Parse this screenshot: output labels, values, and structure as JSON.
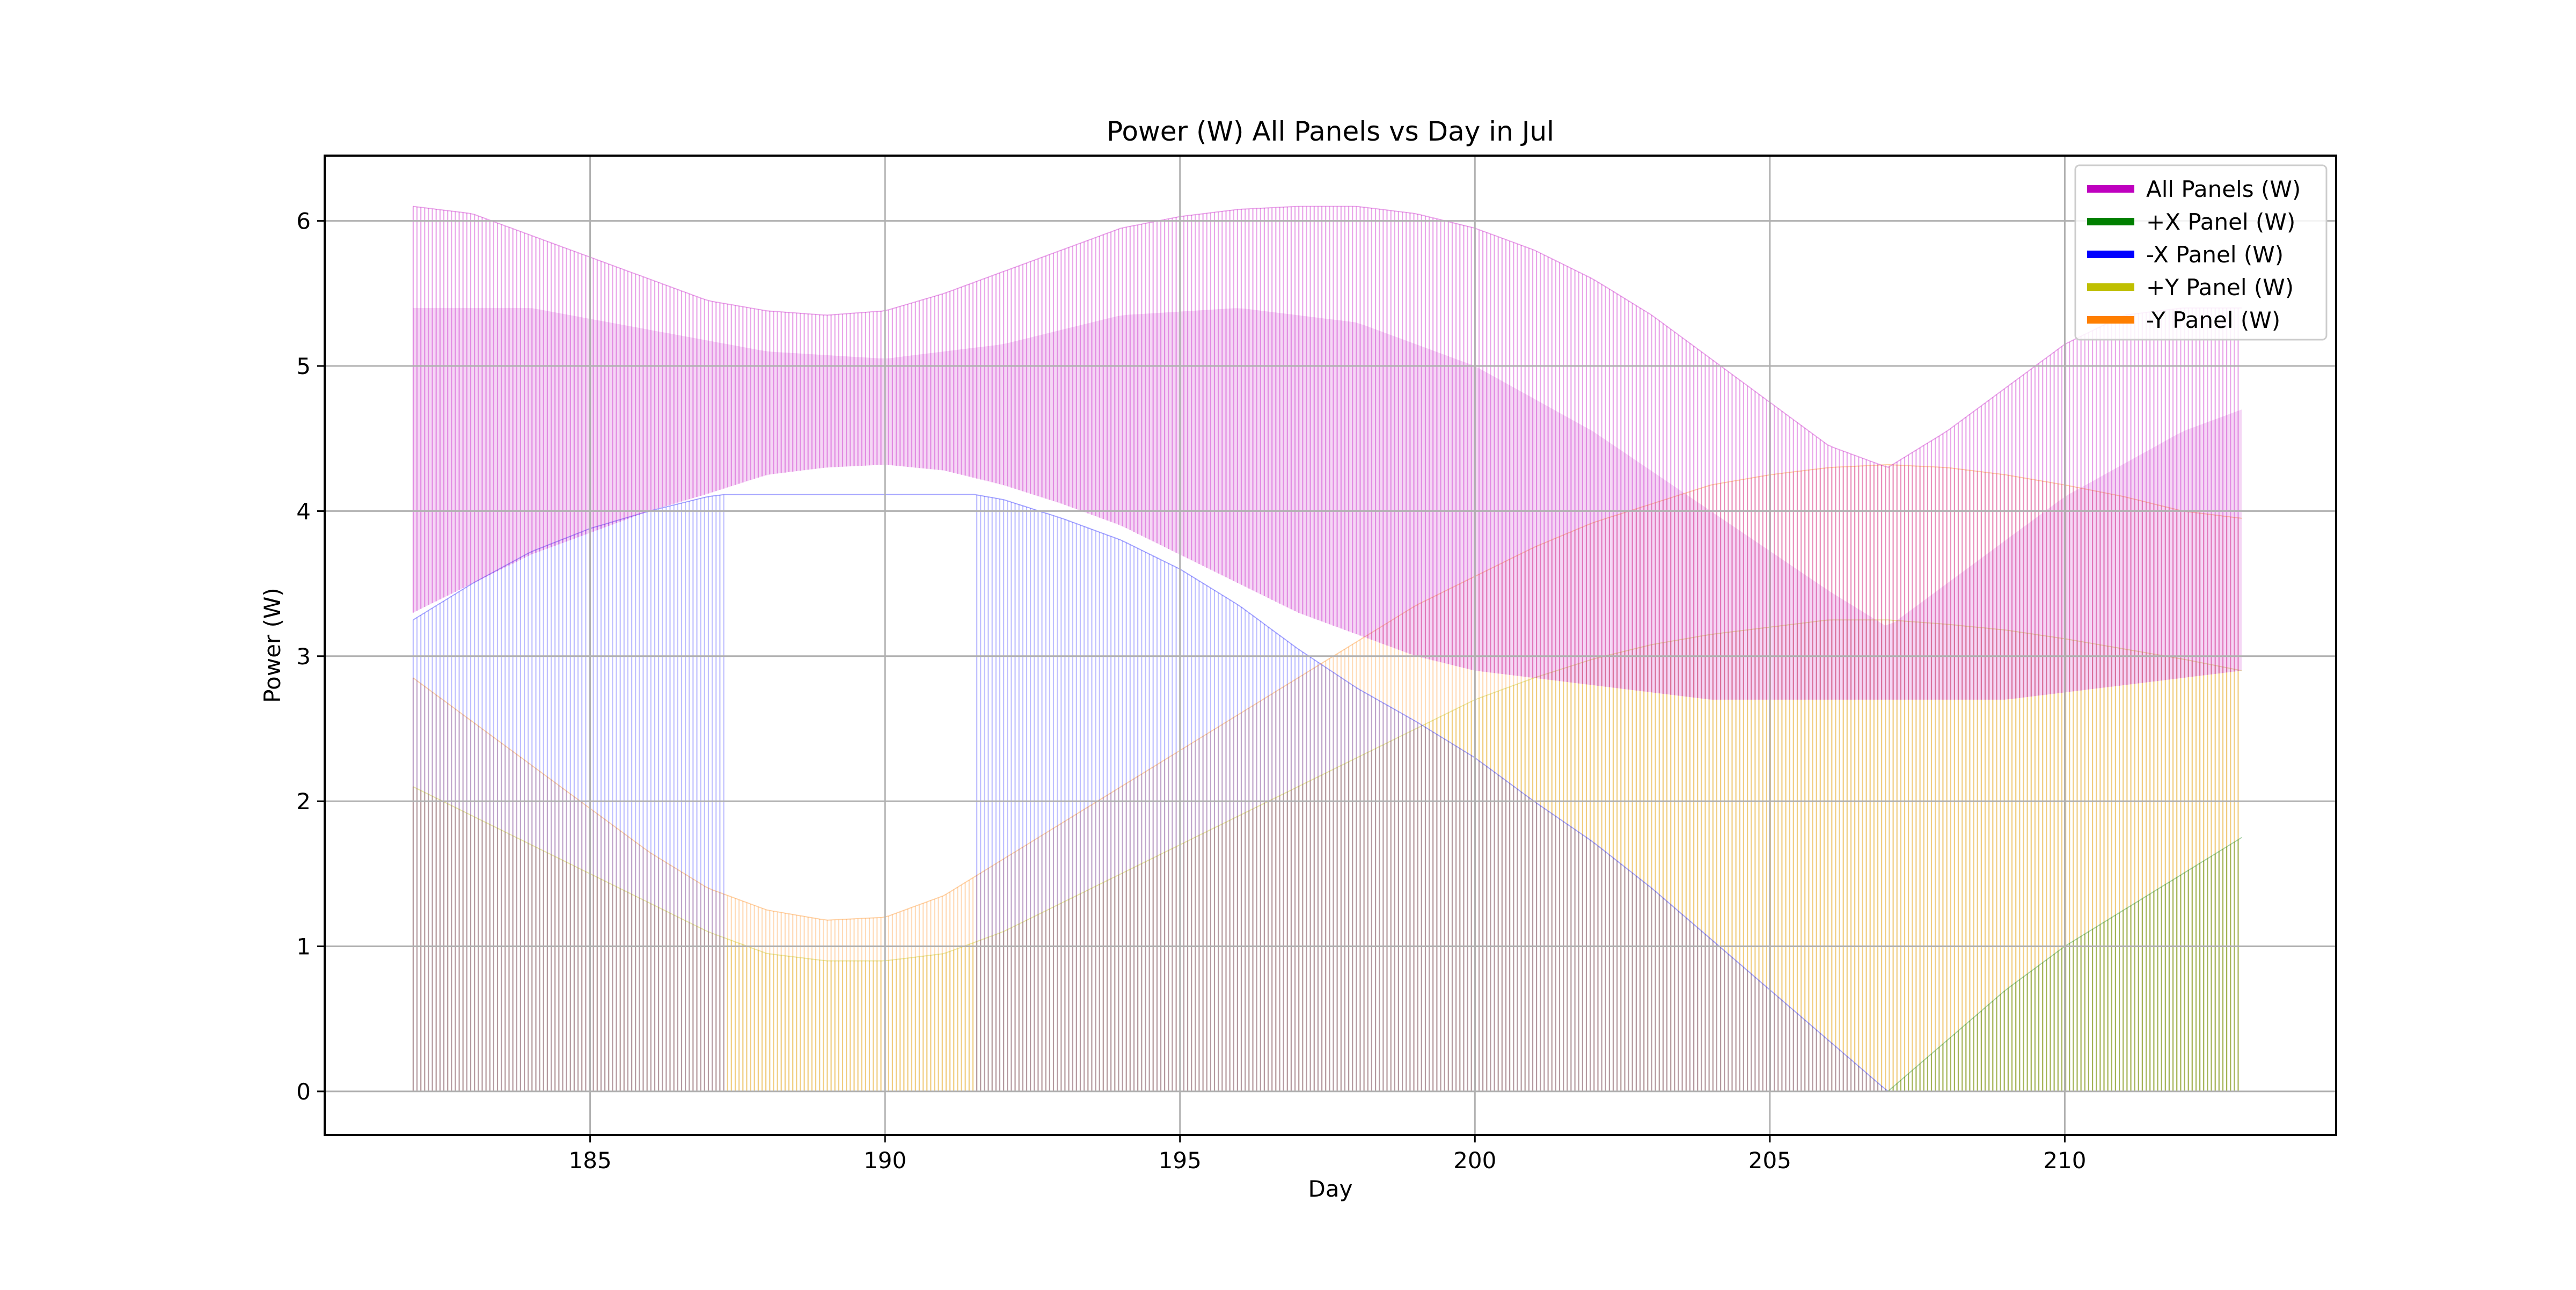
{
  "chart_data": {
    "type": "area",
    "title": "Power (W) All Panels vs Day in Jul",
    "xlabel": "Day",
    "ylabel": "Power (W)",
    "xlim": [
      180.5,
      214.6
    ],
    "ylim": [
      -0.3,
      6.45
    ],
    "x_ticks": [
      185,
      190,
      195,
      200,
      205,
      210
    ],
    "y_ticks": [
      0,
      1,
      2,
      3,
      4,
      5,
      6
    ],
    "grid": true,
    "legend_position": "top-right",
    "x_range": [
      182,
      213
    ],
    "orbit_period_days": 0.065,
    "series": [
      {
        "name": "All Panels (W)",
        "color": "#bf00bf",
        "fill_opacity": 0.25,
        "upper_envelope": [
          [
            182,
            6.1
          ],
          [
            183,
            6.05
          ],
          [
            184,
            5.9
          ],
          [
            185,
            5.75
          ],
          [
            186,
            5.6
          ],
          [
            187,
            5.45
          ],
          [
            188,
            5.38
          ],
          [
            189,
            5.35
          ],
          [
            190,
            5.38
          ],
          [
            191,
            5.5
          ],
          [
            192,
            5.65
          ],
          [
            193,
            5.8
          ],
          [
            194,
            5.95
          ],
          [
            195,
            6.03
          ],
          [
            196,
            6.08
          ],
          [
            197,
            6.1
          ],
          [
            198,
            6.1
          ],
          [
            199,
            6.05
          ],
          [
            200,
            5.95
          ],
          [
            201,
            5.8
          ],
          [
            202,
            5.6
          ],
          [
            203,
            5.35
          ],
          [
            204,
            5.05
          ],
          [
            205,
            4.75
          ],
          [
            206,
            4.45
          ],
          [
            207,
            4.3
          ],
          [
            208,
            4.55
          ],
          [
            209,
            4.85
          ],
          [
            210,
            5.15
          ],
          [
            211,
            5.35
          ],
          [
            212,
            5.4
          ],
          [
            213,
            5.4
          ]
        ],
        "lower_envelope": [
          [
            182,
            3.3
          ],
          [
            183,
            3.5
          ],
          [
            184,
            3.7
          ],
          [
            185,
            3.85
          ],
          [
            186,
            4.0
          ],
          [
            187,
            4.12
          ],
          [
            188,
            4.25
          ],
          [
            189,
            4.3
          ],
          [
            190,
            4.32
          ],
          [
            191,
            4.28
          ],
          [
            192,
            4.18
          ],
          [
            193,
            4.05
          ],
          [
            194,
            3.9
          ],
          [
            195,
            3.7
          ],
          [
            196,
            3.5
          ],
          [
            197,
            3.3
          ],
          [
            198,
            3.15
          ],
          [
            199,
            3.0
          ],
          [
            200,
            2.9
          ],
          [
            201,
            2.85
          ],
          [
            202,
            2.8
          ],
          [
            203,
            2.75
          ],
          [
            204,
            2.7
          ],
          [
            205,
            2.7
          ],
          [
            206,
            2.7
          ],
          [
            207,
            2.7
          ],
          [
            208,
            2.7
          ],
          [
            209,
            2.7
          ],
          [
            210,
            2.75
          ],
          [
            211,
            2.8
          ],
          [
            212,
            2.85
          ],
          [
            213,
            2.9
          ]
        ],
        "band": [
          [
            182,
            5.4
          ],
          [
            184,
            5.4
          ],
          [
            186,
            5.25
          ],
          [
            188,
            5.1
          ],
          [
            190,
            5.05
          ],
          [
            192,
            5.15
          ],
          [
            194,
            5.35
          ],
          [
            196,
            5.4
          ],
          [
            198,
            5.3
          ],
          [
            200,
            5.0
          ],
          [
            202,
            4.55
          ],
          [
            204,
            4.0
          ],
          [
            206,
            3.45
          ],
          [
            207,
            3.2
          ],
          [
            208,
            3.5
          ],
          [
            210,
            4.1
          ],
          [
            212,
            4.55
          ],
          [
            213,
            4.7
          ]
        ]
      },
      {
        "name": "+X Panel (W)",
        "color": "#007f00",
        "fill_opacity": 0.22,
        "upper_envelope": [
          [
            182,
            0
          ],
          [
            206,
            0
          ],
          [
            207,
            0
          ],
          [
            208,
            0.35
          ],
          [
            209,
            0.7
          ],
          [
            210,
            1.0
          ],
          [
            211,
            1.25
          ],
          [
            212,
            1.5
          ],
          [
            213,
            1.75
          ]
        ],
        "lower_envelope": [
          [
            182,
            0
          ],
          [
            213,
            0
          ]
        ]
      },
      {
        "name": "-X Panel (W)",
        "color": "#0000ff",
        "fill_opacity": 0.15,
        "upper_envelope": [
          [
            182,
            3.25
          ],
          [
            183,
            3.5
          ],
          [
            184,
            3.72
          ],
          [
            185,
            3.88
          ],
          [
            186,
            4.0
          ],
          [
            187,
            4.1
          ],
          [
            188,
            4.15
          ],
          [
            189,
            4.18
          ],
          [
            190,
            4.18
          ],
          [
            191,
            4.15
          ],
          [
            192,
            4.08
          ],
          [
            193,
            3.95
          ],
          [
            194,
            3.8
          ],
          [
            195,
            3.6
          ],
          [
            196,
            3.35
          ],
          [
            197,
            3.05
          ],
          [
            198,
            2.78
          ],
          [
            199,
            2.55
          ],
          [
            200,
            2.3
          ],
          [
            201,
            2.0
          ],
          [
            202,
            1.72
          ],
          [
            203,
            1.4
          ],
          [
            204,
            1.05
          ],
          [
            205,
            0.7
          ],
          [
            206,
            0.35
          ],
          [
            207,
            0
          ],
          [
            213,
            0
          ]
        ],
        "lower_envelope": [
          [
            182,
            0
          ],
          [
            213,
            0
          ]
        ],
        "gaps": [
          [
            187.3,
            191.5
          ]
        ]
      },
      {
        "name": "+Y Panel (W)",
        "color": "#bfbf00",
        "fill_opacity": 0.2,
        "upper_envelope": [
          [
            182,
            2.1
          ],
          [
            183,
            1.9
          ],
          [
            184,
            1.7
          ],
          [
            185,
            1.5
          ],
          [
            186,
            1.3
          ],
          [
            187,
            1.1
          ],
          [
            188,
            0.95
          ],
          [
            189,
            0.9
          ],
          [
            190,
            0.9
          ],
          [
            191,
            0.95
          ],
          [
            192,
            1.1
          ],
          [
            193,
            1.3
          ],
          [
            194,
            1.5
          ],
          [
            195,
            1.7
          ],
          [
            196,
            1.9
          ],
          [
            197,
            2.1
          ],
          [
            198,
            2.3
          ],
          [
            199,
            2.5
          ],
          [
            200,
            2.7
          ],
          [
            201,
            2.85
          ],
          [
            202,
            2.98
          ],
          [
            203,
            3.08
          ],
          [
            204,
            3.15
          ],
          [
            205,
            3.2
          ],
          [
            206,
            3.25
          ],
          [
            207,
            3.25
          ],
          [
            208,
            3.22
          ],
          [
            209,
            3.18
          ],
          [
            210,
            3.12
          ],
          [
            211,
            3.05
          ],
          [
            212,
            2.98
          ],
          [
            213,
            2.9
          ]
        ],
        "lower_envelope": [
          [
            182,
            0
          ],
          [
            213,
            0
          ]
        ]
      },
      {
        "name": "-Y Panel (W)",
        "color": "#ff7f00",
        "fill_opacity": 0.18,
        "upper_envelope": [
          [
            182,
            2.85
          ],
          [
            183,
            2.55
          ],
          [
            184,
            2.25
          ],
          [
            185,
            1.95
          ],
          [
            186,
            1.65
          ],
          [
            187,
            1.4
          ],
          [
            188,
            1.25
          ],
          [
            189,
            1.18
          ],
          [
            190,
            1.2
          ],
          [
            191,
            1.35
          ],
          [
            192,
            1.6
          ],
          [
            193,
            1.85
          ],
          [
            194,
            2.1
          ],
          [
            195,
            2.35
          ],
          [
            196,
            2.6
          ],
          [
            197,
            2.85
          ],
          [
            198,
            3.1
          ],
          [
            199,
            3.35
          ],
          [
            200,
            3.55
          ],
          [
            201,
            3.75
          ],
          [
            202,
            3.92
          ],
          [
            203,
            4.05
          ],
          [
            204,
            4.18
          ],
          [
            205,
            4.25
          ],
          [
            206,
            4.3
          ],
          [
            207,
            4.32
          ],
          [
            208,
            4.3
          ],
          [
            209,
            4.25
          ],
          [
            210,
            4.18
          ],
          [
            211,
            4.1
          ],
          [
            212,
            4.0
          ],
          [
            213,
            3.95
          ]
        ],
        "lower_envelope": [
          [
            182,
            0
          ],
          [
            213,
            0
          ]
        ]
      }
    ]
  }
}
